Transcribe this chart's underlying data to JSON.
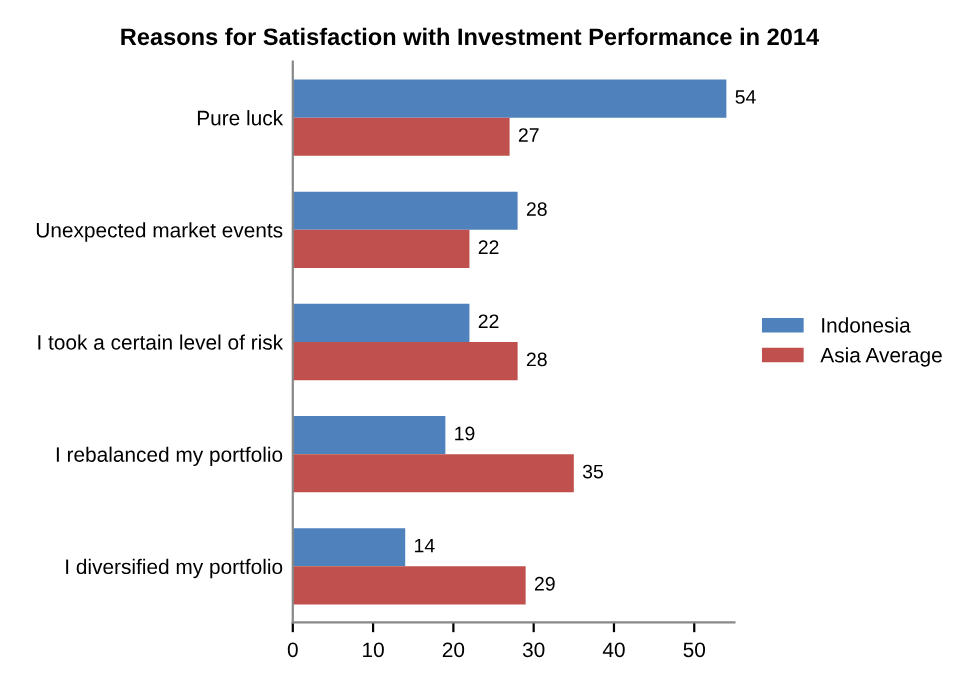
{
  "chart_data": {
    "type": "bar",
    "orientation": "horizontal",
    "title": "Reasons for Satisfaction with Investment Performance in 2014",
    "categories": [
      "Pure luck",
      "Unexpected market events",
      "I took a certain level of risk",
      "I rebalanced my portfolio",
      "I diversified my portfolio"
    ],
    "series": [
      {
        "name": "Indonesia",
        "color": "#4f81bd",
        "values": [
          54,
          28,
          22,
          19,
          14
        ]
      },
      {
        "name": "Asia Average",
        "color": "#c0504d",
        "values": [
          27,
          22,
          28,
          35,
          29
        ]
      }
    ],
    "xlim": [
      0,
      55
    ],
    "xticks": [
      0,
      10,
      20,
      30,
      40,
      50
    ],
    "data_labels": true,
    "grid": false,
    "legend": "right"
  }
}
